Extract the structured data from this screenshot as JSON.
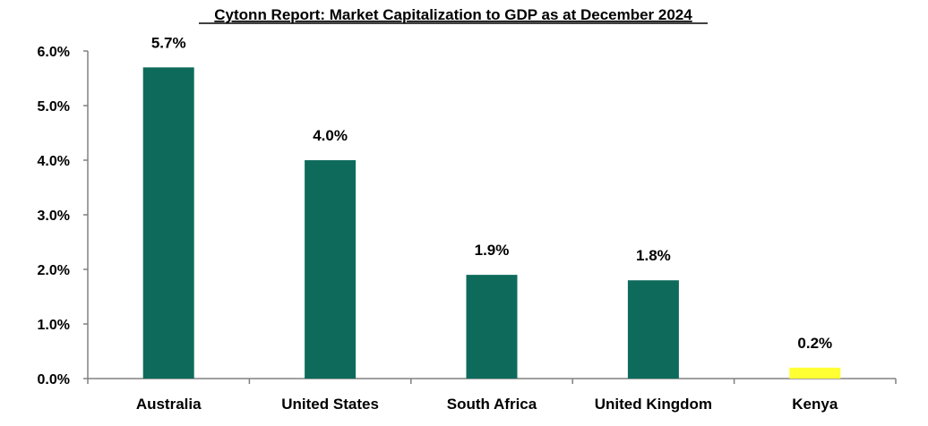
{
  "chart_data": {
    "type": "bar",
    "title": "Cytonn Report: Market Capitalization to GDP as at December 2024",
    "xlabel": "",
    "ylabel": "",
    "categories": [
      "Australia",
      "United States",
      "South Africa",
      "United Kingdom",
      "Kenya"
    ],
    "values": [
      5.7,
      4.0,
      1.9,
      1.8,
      0.2
    ],
    "data_labels": [
      "5.7%",
      "4.0%",
      "1.9%",
      "1.8%",
      "0.2%"
    ],
    "ylim": [
      0,
      6
    ],
    "yticks": [
      0,
      1,
      2,
      3,
      4,
      5,
      6
    ],
    "ytick_labels": [
      "0.0%",
      "1.0%",
      "2.0%",
      "3.0%",
      "4.0%",
      "5.0%",
      "6.0%"
    ],
    "grid": false,
    "legend": "none",
    "colors": {
      "default_bar": "#0e6b5c",
      "highlight_bar": "#ffff33",
      "axis": "#808080"
    },
    "bar_colors": [
      "#0e6b5c",
      "#0e6b5c",
      "#0e6b5c",
      "#0e6b5c",
      "#ffff33"
    ]
  }
}
